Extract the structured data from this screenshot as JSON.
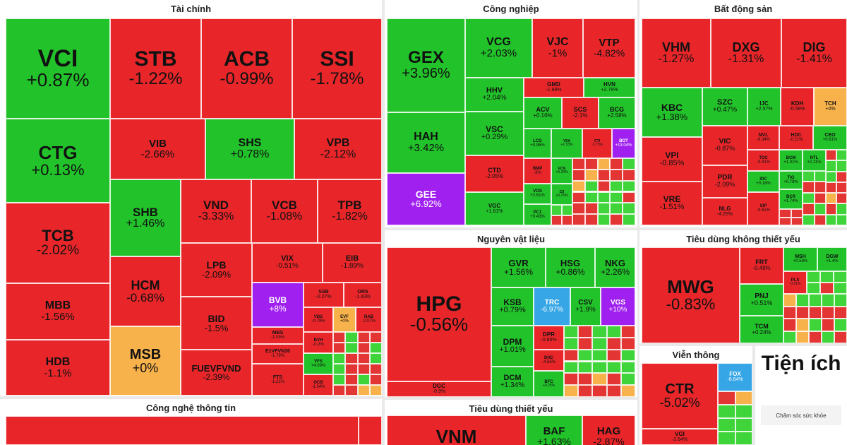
{
  "colors": {
    "up": "#22c22a",
    "down": "#e8262a",
    "flat": "#f7b24b",
    "ceiling": "#a020f0",
    "floor": "#36a6e6",
    "small_up": "#3fd43a",
    "small_down": "#e33534"
  },
  "chart_data": {
    "type": "treemap",
    "sectors": [
      {
        "name": "Tài chính",
        "stocks": [
          {
            "symbol": "VCI",
            "change": "+0.87%"
          },
          {
            "symbol": "STB",
            "change": "-1.22%"
          },
          {
            "symbol": "ACB",
            "change": "-0.99%"
          },
          {
            "symbol": "SSI",
            "change": "-1.78%"
          },
          {
            "symbol": "CTG",
            "change": "+0.13%"
          },
          {
            "symbol": "VIB",
            "change": "-2.66%"
          },
          {
            "symbol": "SHS",
            "change": "+0.78%"
          },
          {
            "symbol": "VPB",
            "change": "-2.12%"
          },
          {
            "symbol": "TCB",
            "change": "-2.02%"
          },
          {
            "symbol": "SHB",
            "change": "+1.46%"
          },
          {
            "symbol": "VND",
            "change": "-3.33%"
          },
          {
            "symbol": "VCB",
            "change": "-1.08%"
          },
          {
            "symbol": "TPB",
            "change": "-1.82%"
          },
          {
            "symbol": "MBB",
            "change": "-1.56%"
          },
          {
            "symbol": "HCM",
            "change": "-0.68%"
          },
          {
            "symbol": "LPB",
            "change": "-2.09%"
          },
          {
            "symbol": "VIX",
            "change": "-0.51%"
          },
          {
            "symbol": "EIB",
            "change": "-1.89%"
          },
          {
            "symbol": "BVB",
            "change": "+8%"
          },
          {
            "symbol": "SSB",
            "change": "-0.27%"
          },
          {
            "symbol": "ORS",
            "change": "-1.43%"
          },
          {
            "symbol": "HDB",
            "change": "-1.1%"
          },
          {
            "symbol": "MSB",
            "change": "+0%"
          },
          {
            "symbol": "BID",
            "change": "-1.5%"
          },
          {
            "symbol": "MBS",
            "change": "-1.09%"
          },
          {
            "symbol": "VDS",
            "change": "-0.79%"
          },
          {
            "symbol": "EVF",
            "change": "+0%"
          },
          {
            "symbol": "NAB",
            "change": "-2.07%"
          },
          {
            "symbol": "E1VFVN30",
            "change": "-1.79%"
          },
          {
            "symbol": "BVH",
            "change": "-0.2%"
          },
          {
            "symbol": "FUEVFVND",
            "change": "-2.39%"
          },
          {
            "symbol": "FTS",
            "change": "-1.21%"
          },
          {
            "symbol": "VFS",
            "change": "+4.09%"
          },
          {
            "symbol": "OCB",
            "change": "-1.34%"
          }
        ]
      },
      {
        "name": "Công nghiệp",
        "stocks": [
          {
            "symbol": "GEX",
            "change": "+3.96%"
          },
          {
            "symbol": "VCG",
            "change": "+2.03%"
          },
          {
            "symbol": "VJC",
            "change": "-1%"
          },
          {
            "symbol": "VTP",
            "change": "-4.82%"
          },
          {
            "symbol": "GMD",
            "change": "-1.88%"
          },
          {
            "symbol": "HVN",
            "change": "+2.79%"
          },
          {
            "symbol": "HHV",
            "change": "+2.04%"
          },
          {
            "symbol": "HAH",
            "change": "+3.42%"
          },
          {
            "symbol": "ACV",
            "change": "+0.16%"
          },
          {
            "symbol": "SCS",
            "change": "-2.1%"
          },
          {
            "symbol": "BCG",
            "change": "+2.58%"
          },
          {
            "symbol": "VSC",
            "change": "+0.29%"
          },
          {
            "symbol": "LCG",
            "change": "+0.96%"
          },
          {
            "symbol": "YEA",
            "change": "+1.53%"
          },
          {
            "symbol": "CTI",
            "change": "-3.75%"
          },
          {
            "symbol": "BOT",
            "change": "+13.04%"
          },
          {
            "symbol": "GEE",
            "change": "+6.92%"
          },
          {
            "symbol": "CTD",
            "change": "-2.05%"
          },
          {
            "symbol": "BMP",
            "change": "-3%"
          },
          {
            "symbol": "FCN",
            "change": "+0.34%"
          },
          {
            "symbol": "CII",
            "change": "+0.75%"
          },
          {
            "symbol": "VGC",
            "change": "+1.61%"
          },
          {
            "symbol": "VOS",
            "change": "+2.61%"
          },
          {
            "symbol": "PC1",
            "change": "+0.43%"
          }
        ]
      },
      {
        "name": "Bất động sản",
        "stocks": [
          {
            "symbol": "VHM",
            "change": "-1.27%"
          },
          {
            "symbol": "DXG",
            "change": "-1.31%"
          },
          {
            "symbol": "DIG",
            "change": "-1.41%"
          },
          {
            "symbol": "KBC",
            "change": "+1.38%"
          },
          {
            "symbol": "SZC",
            "change": "+0.47%"
          },
          {
            "symbol": "IJC",
            "change": "+2.57%"
          },
          {
            "symbol": "KDH",
            "change": "-0.58%"
          },
          {
            "symbol": "TCH",
            "change": "+0%"
          },
          {
            "symbol": "NVL",
            "change": "-0.34%"
          },
          {
            "symbol": "HDC",
            "change": "-0.21%"
          },
          {
            "symbol": "CEO",
            "change": "+0.81%"
          },
          {
            "symbol": "VIC",
            "change": "-0.87%"
          },
          {
            "symbol": "VPI",
            "change": "-0.85%"
          },
          {
            "symbol": "TDC",
            "change": "-0.41%"
          },
          {
            "symbol": "BCM",
            "change": "+1.01%"
          },
          {
            "symbol": "NTL",
            "change": "+2.11%"
          },
          {
            "symbol": "PDR",
            "change": "-2.09%"
          },
          {
            "symbol": "IDC",
            "change": "+0.18%"
          },
          {
            "symbol": "TIG",
            "change": "+0.78%"
          },
          {
            "symbol": "VRE",
            "change": "-1.51%"
          },
          {
            "symbol": "NLG",
            "change": "-4.25%"
          },
          {
            "symbol": "SIP",
            "change": "-0.61%"
          },
          {
            "symbol": "BCR",
            "change": "+1.74%"
          }
        ]
      },
      {
        "name": "Nguyên vật liệu",
        "stocks": [
          {
            "symbol": "HPG",
            "change": "-0.56%"
          },
          {
            "symbol": "GVR",
            "change": "+1.56%"
          },
          {
            "symbol": "HSG",
            "change": "+0.86%"
          },
          {
            "symbol": "NKG",
            "change": "+2.26%"
          },
          {
            "symbol": "KSB",
            "change": "+0.79%"
          },
          {
            "symbol": "TRC",
            "change": "-6.97%"
          },
          {
            "symbol": "CSV",
            "change": "+1.9%"
          },
          {
            "symbol": "VGS",
            "change": "+10%"
          },
          {
            "symbol": "DPM",
            "change": "+1.01%"
          },
          {
            "symbol": "DPR",
            "change": "-0.85%"
          },
          {
            "symbol": "DHC",
            "change": "-4.55%"
          },
          {
            "symbol": "DGC",
            "change": "-0.9%"
          },
          {
            "symbol": "DCM",
            "change": "+1.34%"
          },
          {
            "symbol": "BFC",
            "change": "+0.25%"
          }
        ]
      },
      {
        "name": "Tiêu dùng không thiết yếu",
        "stocks": [
          {
            "symbol": "MWG",
            "change": "-0.83%"
          },
          {
            "symbol": "FRT",
            "change": "-0.49%"
          },
          {
            "symbol": "MSH",
            "change": "+0.58%"
          },
          {
            "symbol": "DGW",
            "change": "+1.4%"
          },
          {
            "symbol": "PLX",
            "change": "-0.51%"
          },
          {
            "symbol": "PNJ",
            "change": "+0.51%"
          },
          {
            "symbol": "TCM",
            "change": "+0.24%"
          }
        ]
      },
      {
        "name": "Viễn thông",
        "stocks": [
          {
            "symbol": "CTR",
            "change": "-5.02%"
          },
          {
            "symbol": "FOX",
            "change": "-8.64%"
          },
          {
            "symbol": "VGI",
            "change": "-2.64%"
          }
        ]
      },
      {
        "name": "Tiện ích",
        "stocks": []
      },
      {
        "name": "Công nghệ thông tin",
        "stocks": []
      },
      {
        "name": "Tiêu dùng thiết yếu",
        "stocks": [
          {
            "symbol": "VNM",
            "change": ""
          },
          {
            "symbol": "BAF",
            "change": "+1.63%"
          },
          {
            "symbol": "HAG",
            "change": "-2.87%"
          }
        ]
      }
    ],
    "utility_subtitle": "Chăm sóc sức khỏe"
  }
}
